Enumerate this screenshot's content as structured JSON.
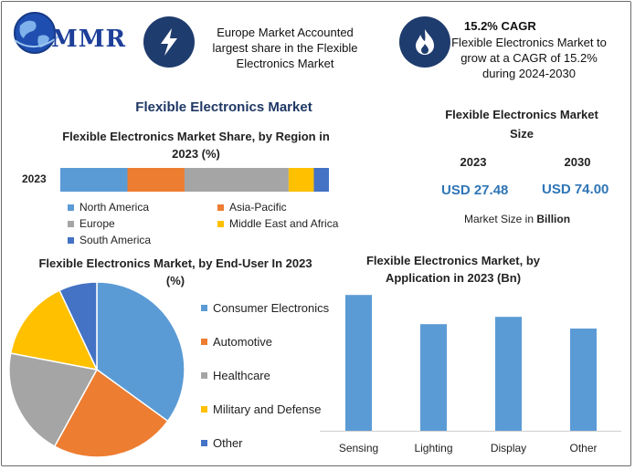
{
  "header": {
    "brand": "MMR",
    "europe_text": "Europe Market Accounted largest share in the Flexible Electronics Market",
    "cagr_title": "15.2% CAGR",
    "cagr_text": "Flexible Electronics Market to grow at a CAGR of 15.2% during 2024-2030",
    "icon_left": "lightning-icon",
    "icon_right": "flame-icon"
  },
  "main_title": "Flexible Electronics Market",
  "market_size": {
    "title": "Flexible Electronics Market Size",
    "year1": "2023",
    "year2": "2030",
    "value1": "USD 27.48",
    "value2": "USD 74.00",
    "note_prefix": "Market Size in ",
    "note_bold": "Billion"
  },
  "colors": {
    "north_america": "#5b9bd5",
    "asia_pacific": "#ed7d31",
    "europe": "#a5a5a5",
    "mea": "#ffc000",
    "south_america": "#4472c4",
    "bar": "#5b9bd5"
  },
  "chart_data": [
    {
      "type": "bar",
      "orientation": "horizontal-stacked",
      "title": "Flexible Electronics Market Share, by Region in 2023 (%)",
      "categories": [
        "2023"
      ],
      "series": [
        {
          "name": "North America",
          "values": [
            20
          ]
        },
        {
          "name": "Asia-Pacific",
          "values": [
            17
          ]
        },
        {
          "name": "Europe",
          "values": [
            31
          ]
        },
        {
          "name": "Middle East and Africa",
          "values": [
            7.5
          ]
        },
        {
          "name": "South America",
          "values": [
            4.5
          ]
        }
      ],
      "legend": "bottom"
    },
    {
      "type": "pie",
      "title": "Flexible Electronics Market, by End-User In 2023 (%)",
      "labels": [
        "Consumer Electronics",
        "Automotive",
        "Healthcare",
        "Military and Defense",
        "Other"
      ],
      "values": [
        35,
        23,
        20,
        15,
        7
      ],
      "legend": "right"
    },
    {
      "type": "bar",
      "title": "Flexible Electronics Market, by Application in 2023 (Bn)",
      "categories": [
        "Sensing",
        "Lighting",
        "Display",
        "Other"
      ],
      "values": [
        9.3,
        7.3,
        7.8,
        7.0
      ],
      "ylim": [
        0,
        10
      ]
    }
  ]
}
